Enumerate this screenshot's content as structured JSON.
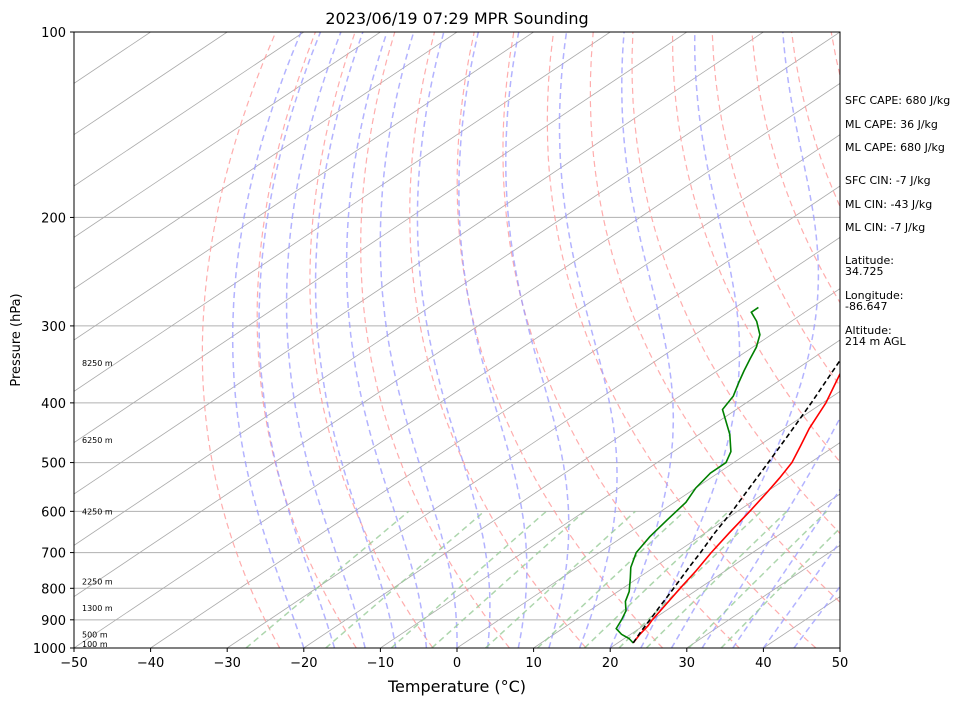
{
  "chart_data": {
    "type": "line",
    "title": "2023/06/19 07:29 MPR Sounding",
    "xlabel": "Temperature (°C)",
    "ylabel": "Pressure (hPa)",
    "xlim": [
      -50,
      50
    ],
    "ylim": [
      1000,
      100
    ],
    "y_scale": "log",
    "grid": true,
    "x_ticks": [
      -50,
      -40,
      -30,
      -20,
      -10,
      0,
      10,
      20,
      30,
      40,
      50
    ],
    "x_tick_labels": [
      "−50",
      "−40",
      "−30",
      "−20",
      "−10",
      "0",
      "10",
      "20",
      "30",
      "40",
      "50"
    ],
    "y_ticks": [
      1000,
      900,
      800,
      700,
      600,
      500,
      400,
      300,
      200,
      100
    ],
    "y_tick_labels": [
      "1000",
      "900",
      "800",
      "700",
      "600",
      "500",
      "400",
      "300",
      "200",
      "100"
    ],
    "height_labels": [
      {
        "pressure": 988,
        "label": "100 m"
      },
      {
        "pressure": 955,
        "label": "500 m"
      },
      {
        "pressure": 865,
        "label": "1300 m"
      },
      {
        "pressure": 783,
        "label": "2250 m"
      },
      {
        "pressure": 603,
        "label": "4250 m"
      },
      {
        "pressure": 461,
        "label": "6250 m"
      },
      {
        "pressure": 346,
        "label": "8250 m"
      }
    ],
    "series": [
      {
        "role": "temperature",
        "color": "#ff0000",
        "style": "solid",
        "points": [
          [
            22.0,
            981
          ],
          [
            21.2,
            950
          ],
          [
            20.6,
            920
          ],
          [
            20.0,
            900
          ],
          [
            18.8,
            850
          ],
          [
            17.5,
            800
          ],
          [
            16.2,
            750
          ],
          [
            14.6,
            700
          ],
          [
            13.1,
            650
          ],
          [
            11.6,
            600
          ],
          [
            10.2,
            560
          ],
          [
            9.0,
            530
          ],
          [
            7.6,
            500
          ],
          [
            5.5,
            470
          ],
          [
            3.2,
            440
          ],
          [
            0.4,
            400
          ],
          [
            -3.3,
            360
          ],
          [
            -7.3,
            320
          ],
          [
            -11.3,
            280
          ]
        ]
      },
      {
        "role": "dewpoint",
        "color": "#008000",
        "style": "solid",
        "points": [
          [
            22.0,
            981
          ],
          [
            20.6,
            965
          ],
          [
            18.8,
            950
          ],
          [
            17.0,
            930
          ],
          [
            16.0,
            900
          ],
          [
            14.8,
            870
          ],
          [
            12.9,
            840
          ],
          [
            11.5,
            810
          ],
          [
            9.0,
            770
          ],
          [
            7.0,
            740
          ],
          [
            4.8,
            700
          ],
          [
            3.5,
            660
          ],
          [
            2.5,
            620
          ],
          [
            1.5,
            580
          ],
          [
            0.0,
            550
          ],
          [
            -1.0,
            520
          ],
          [
            -1.0,
            500
          ],
          [
            -2.5,
            480
          ],
          [
            -6.0,
            450
          ],
          [
            -11.8,
            410
          ],
          [
            -13.0,
            390
          ],
          [
            -15.0,
            370
          ],
          [
            -16.5,
            355
          ],
          [
            -18.0,
            340
          ],
          [
            -19.5,
            325
          ],
          [
            -21.5,
            310
          ],
          [
            -24.5,
            295
          ],
          [
            -27.0,
            285
          ],
          [
            -27.0,
            280
          ]
        ]
      },
      {
        "role": "parcel",
        "color": "#000000",
        "style": "dashed",
        "points": [
          [
            22.0,
            981
          ],
          [
            20.8,
            940
          ],
          [
            19.7,
            900
          ],
          [
            18.5,
            860
          ],
          [
            17.3,
            820
          ],
          [
            16.0,
            780
          ],
          [
            14.6,
            740
          ],
          [
            13.2,
            700
          ],
          [
            11.2,
            650
          ],
          [
            9.3,
            600
          ],
          [
            7.0,
            550
          ],
          [
            4.5,
            500
          ],
          [
            1.7,
            450
          ],
          [
            -1.5,
            400
          ],
          [
            -5.3,
            350
          ],
          [
            -9.7,
            300
          ],
          [
            -11.3,
            285
          ],
          [
            -12.1,
            278
          ]
        ]
      }
    ],
    "reference_lines": {
      "dry_adiabats_color": "#ff9999",
      "moist_adiabats_color": "#9999ff",
      "mixing_ratio_color": "#99cc99",
      "isotherm_color": "#aaaaaa"
    }
  },
  "side_panel": {
    "sfc_cape": "SFC CAPE: 680 J/kg",
    "ml_cape_1": "ML CAPE: 36 J/kg",
    "ml_cape_2": "ML CAPE: 680 J/kg",
    "sfc_cin": "SFC CIN: -7 J/kg",
    "ml_cin_1": "ML CIN: -43 J/kg",
    "ml_cin_2": "ML CIN: -7 J/kg",
    "latitude": "Latitude:\n34.725",
    "longitude": "Longitude:\n-86.647",
    "altitude": "Altitude:\n214 m AGL"
  }
}
